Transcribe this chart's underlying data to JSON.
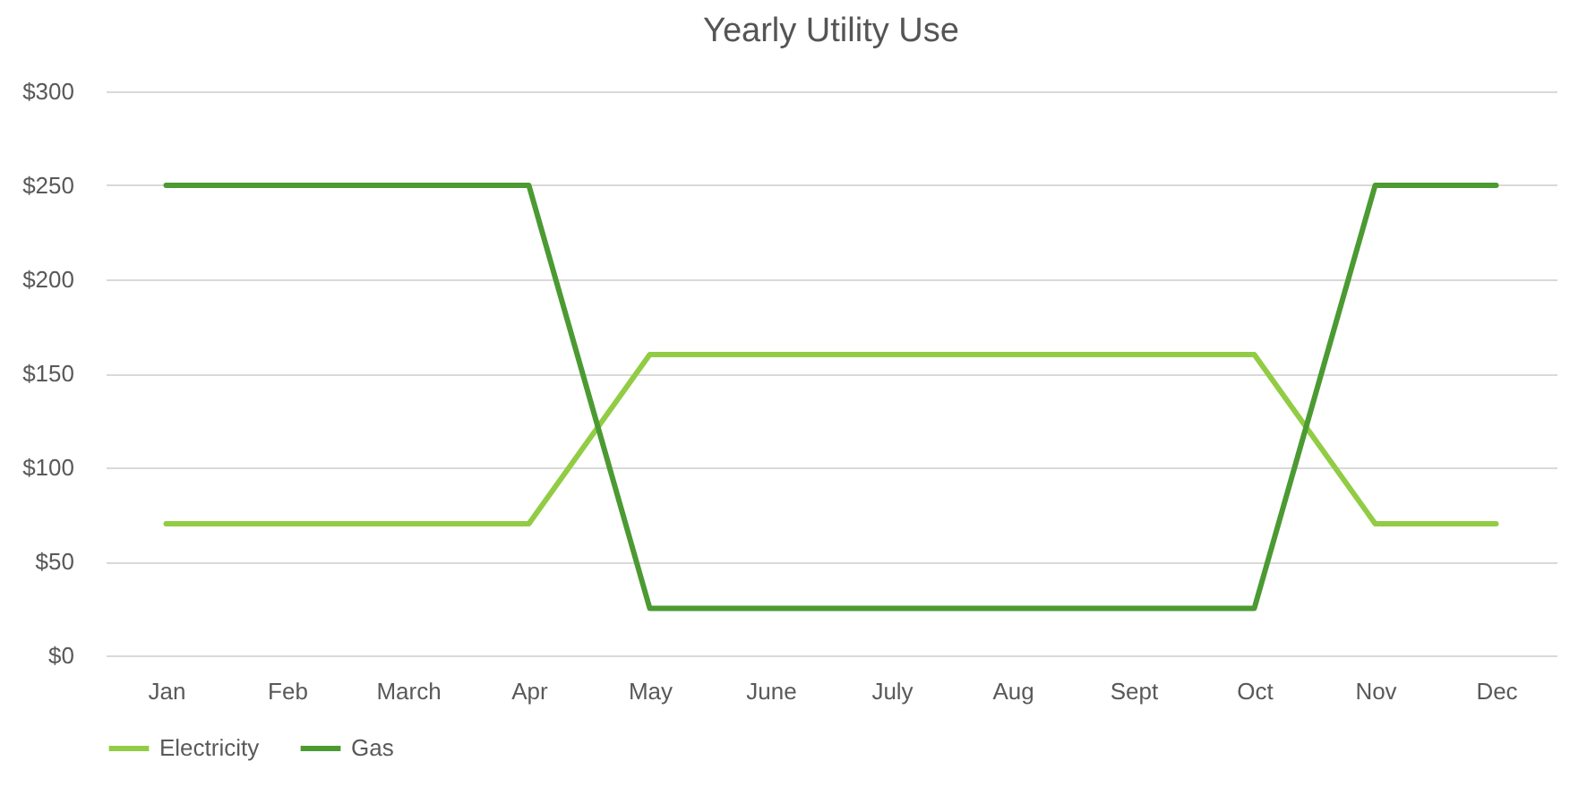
{
  "chart_data": {
    "type": "line",
    "title": "Yearly Utility Use",
    "categories": [
      "Jan",
      "Feb",
      "March",
      "Apr",
      "May",
      "June",
      "July",
      "Aug",
      "Sept",
      "Oct",
      "Nov",
      "Dec"
    ],
    "series": [
      {
        "name": "Electricity",
        "color": "#92cc45",
        "values": [
          70,
          70,
          70,
          70,
          160,
          160,
          160,
          160,
          160,
          160,
          70,
          70
        ]
      },
      {
        "name": "Gas",
        "color": "#4b9a32",
        "values": [
          250,
          250,
          250,
          250,
          25,
          25,
          25,
          25,
          25,
          25,
          250,
          250
        ]
      }
    ],
    "ylim": [
      0,
      300
    ],
    "yticks": [
      {
        "value": 0,
        "label": "$0"
      },
      {
        "value": 50,
        "label": "$50"
      },
      {
        "value": 100,
        "label": "$100"
      },
      {
        "value": 150,
        "label": "$150"
      },
      {
        "value": 200,
        "label": "$200"
      },
      {
        "value": 250,
        "label": "$250"
      },
      {
        "value": 300,
        "label": "$300"
      }
    ],
    "grid": "y",
    "legend": "bottom",
    "marker": "none",
    "line_style": "solid"
  }
}
